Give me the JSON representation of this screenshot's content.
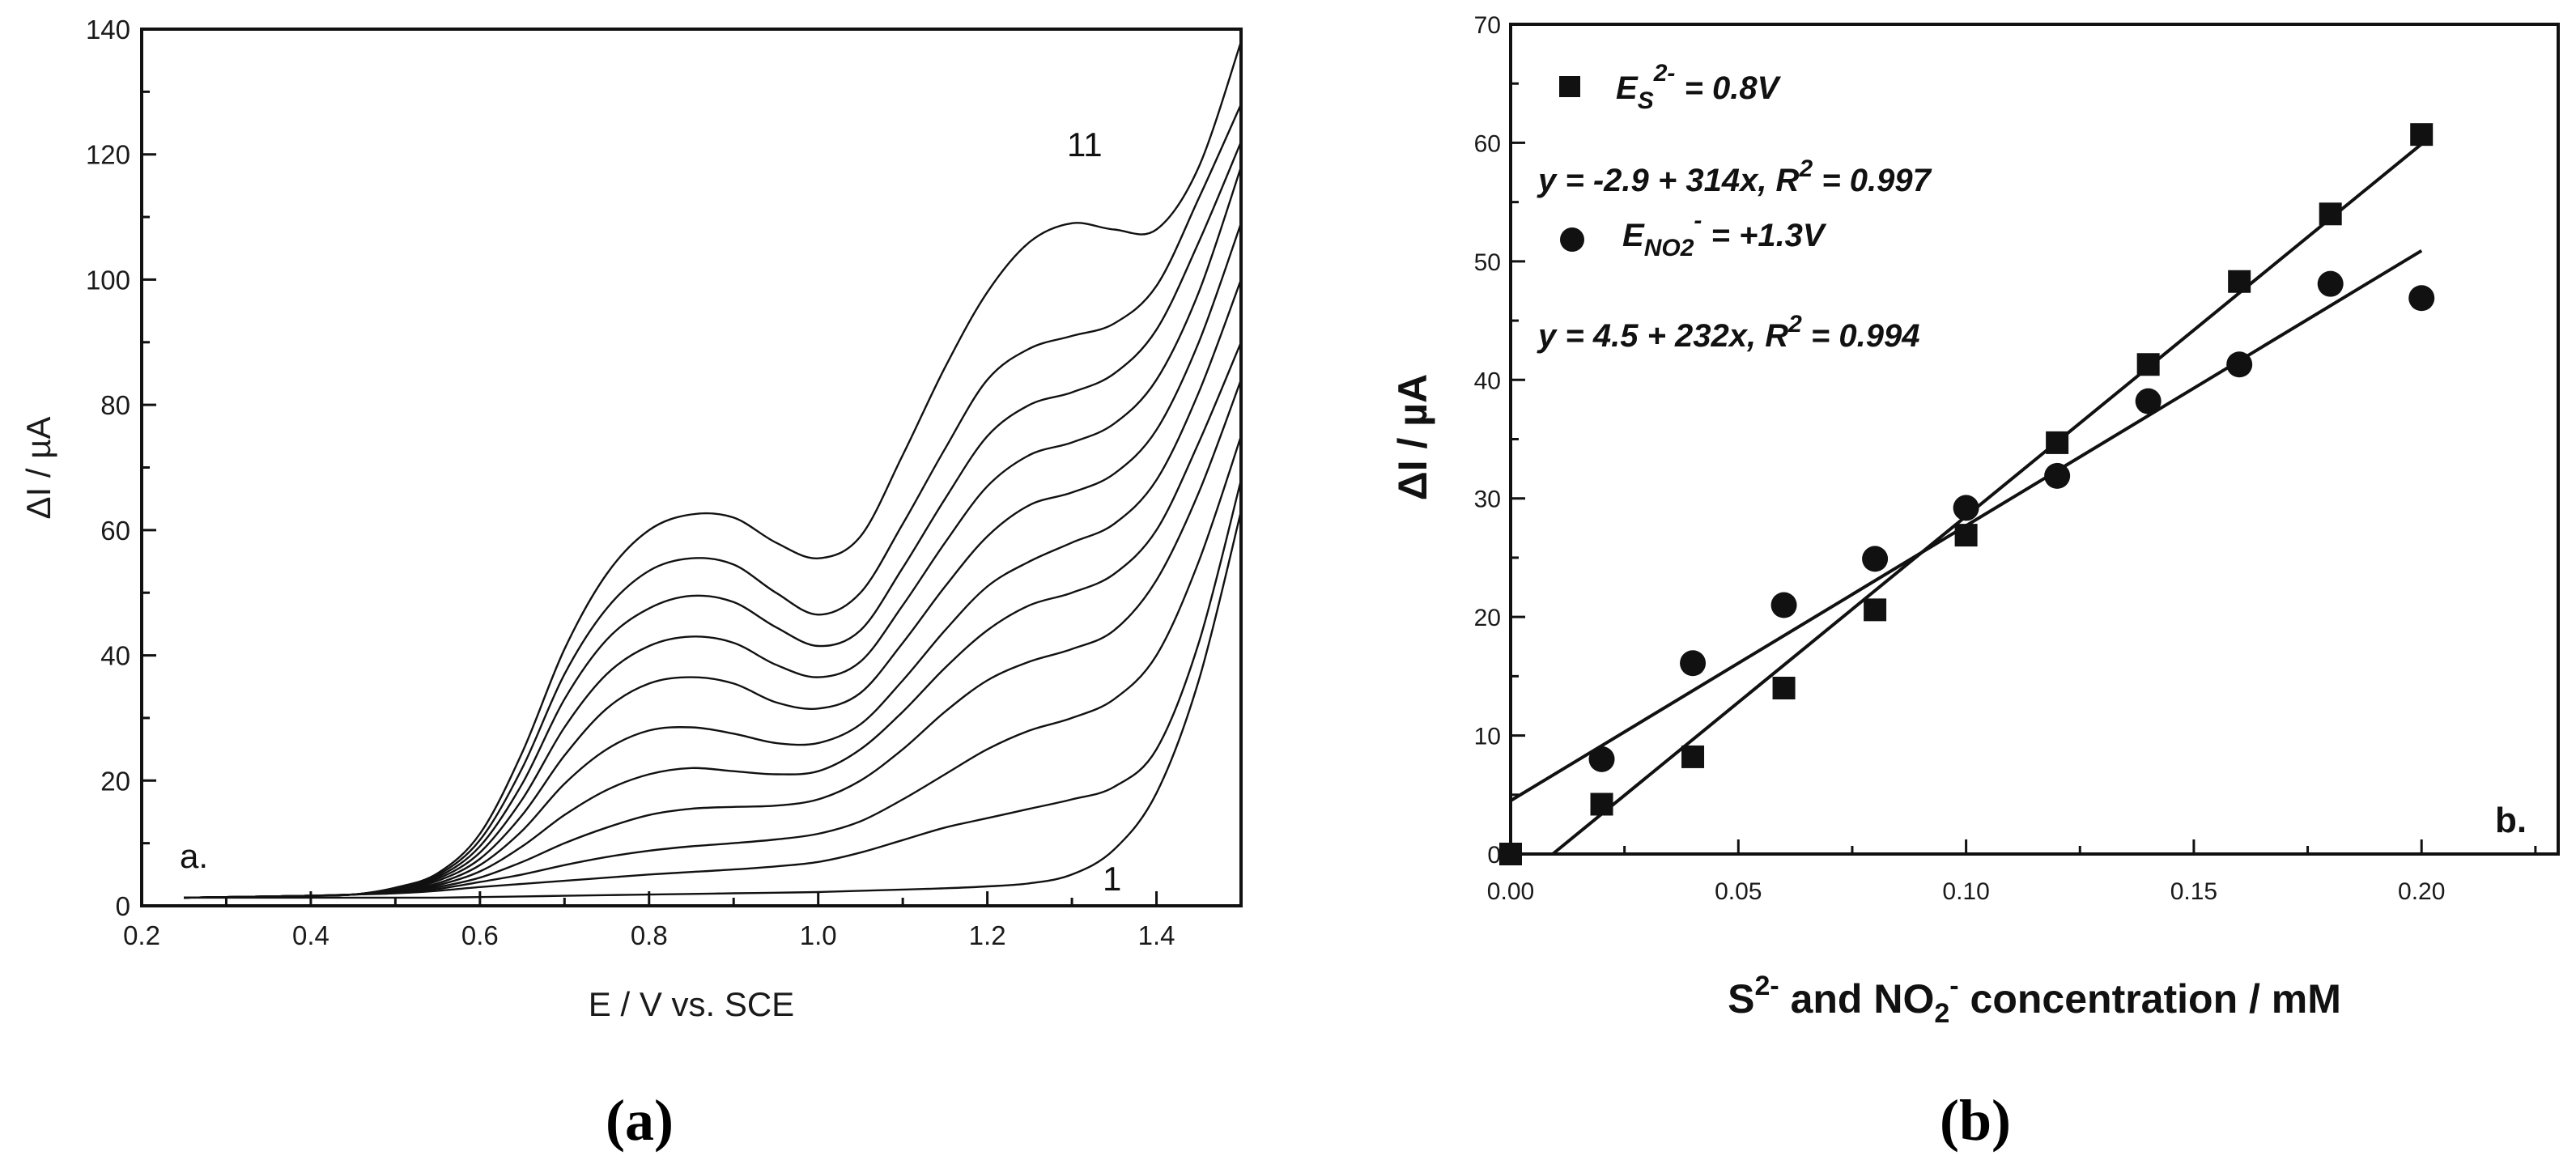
{
  "chart_data": [
    {
      "type": "line",
      "panel_label": "(a)",
      "corner_label": "a.",
      "xlabel": "E / V vs. SCE",
      "ylabel": "ΔI / µA",
      "xlim": [
        0.2,
        1.5
      ],
      "ylim": [
        0,
        140
      ],
      "x_ticks": [
        "0.2",
        "0.4",
        "0.6",
        "0.8",
        "1.0",
        "1.2",
        "1.4"
      ],
      "y_ticks": [
        "0",
        "20",
        "40",
        "60",
        "80",
        "100",
        "120",
        "140"
      ],
      "curve_labels": {
        "first": "1",
        "last": "11"
      },
      "x": [
        0.25,
        0.3,
        0.35,
        0.4,
        0.45,
        0.5,
        0.55,
        0.6,
        0.65,
        0.7,
        0.75,
        0.8,
        0.85,
        0.9,
        0.95,
        1.0,
        1.05,
        1.1,
        1.15,
        1.2,
        1.25,
        1.3,
        1.35,
        1.4,
        1.45,
        1.5
      ],
      "series": [
        {
          "name": "1",
          "values": [
            1.3,
            1.3,
            1.3,
            1.3,
            1.3,
            1.3,
            1.3,
            1.4,
            1.5,
            1.6,
            1.7,
            1.8,
            1.9,
            2.0,
            2.1,
            2.2,
            2.4,
            2.6,
            2.8,
            3.1,
            3.6,
            5,
            9,
            18,
            36,
            63
          ]
        },
        {
          "name": "2",
          "values": [
            1.3,
            1.4,
            1.5,
            1.6,
            1.8,
            2.0,
            2.4,
            3.0,
            3.5,
            4.0,
            4.5,
            5.0,
            5.4,
            5.8,
            6.3,
            7.0,
            8.5,
            10.5,
            12.5,
            14.0,
            15.5,
            17,
            19,
            25,
            42,
            68
          ]
        },
        {
          "name": "3",
          "values": [
            1.3,
            1.4,
            1.5,
            1.6,
            1.8,
            2.1,
            2.7,
            3.8,
            5.0,
            6.5,
            7.8,
            8.8,
            9.5,
            10.0,
            10.6,
            11.5,
            13.5,
            17,
            21,
            25,
            28,
            30,
            33,
            40,
            55,
            75
          ]
        },
        {
          "name": "4",
          "values": [
            1.3,
            1.4,
            1.5,
            1.6,
            1.8,
            2.2,
            3.0,
            4.5,
            7.0,
            10.0,
            12.5,
            14.5,
            15.5,
            15.8,
            16.0,
            17.0,
            20,
            25,
            31,
            36,
            39,
            41,
            44,
            52,
            66,
            84
          ]
        },
        {
          "name": "5",
          "values": [
            1.3,
            1.4,
            1.5,
            1.6,
            1.8,
            2.3,
            3.3,
            5.5,
            9.5,
            14.5,
            18.5,
            21.0,
            22.0,
            21.5,
            21.0,
            21.5,
            25,
            31,
            38,
            44,
            48,
            50,
            53,
            60,
            74,
            90
          ]
        },
        {
          "name": "6",
          "values": [
            1.3,
            1.4,
            1.5,
            1.6,
            1.8,
            2.4,
            3.6,
            6.5,
            12.0,
            19.5,
            25.0,
            28.0,
            28.5,
            27.5,
            26.0,
            26.0,
            29,
            36,
            44,
            51,
            55,
            58,
            61,
            68,
            82,
            100
          ]
        },
        {
          "name": "7",
          "values": [
            1.3,
            1.4,
            1.5,
            1.6,
            1.8,
            2.5,
            4.0,
            7.5,
            14.5,
            24.0,
            31.5,
            35.5,
            36.5,
            35.5,
            32.5,
            31.5,
            34,
            42,
            51,
            59,
            64,
            66,
            69,
            76,
            90,
            109
          ]
        },
        {
          "name": "8",
          "values": [
            1.3,
            1.4,
            1.5,
            1.6,
            1.8,
            2.6,
            4.3,
            8.5,
            17.0,
            28.5,
            37.0,
            41.5,
            43.0,
            42.0,
            38.5,
            36.5,
            39,
            48,
            58,
            67,
            72,
            74,
            77,
            84,
            98,
            118
          ]
        },
        {
          "name": "9",
          "values": [
            1.3,
            1.4,
            1.5,
            1.6,
            1.8,
            2.7,
            4.6,
            9.5,
            19.5,
            33.0,
            42.5,
            47.5,
            49.5,
            48.5,
            44.5,
            41.5,
            44,
            54,
            65,
            75,
            80,
            82,
            85,
            92,
            106,
            122
          ]
        },
        {
          "name": "10",
          "values": [
            1.3,
            1.4,
            1.5,
            1.6,
            1.8,
            2.8,
            4.9,
            10.5,
            22.0,
            37.0,
            47.5,
            53.5,
            55.5,
            54.5,
            50.0,
            46.5,
            50,
            61,
            73,
            84,
            89,
            91,
            93,
            99,
            113,
            128
          ]
        },
        {
          "name": "11",
          "values": [
            1.3,
            1.4,
            1.5,
            1.6,
            1.8,
            2.9,
            5.2,
            11.5,
            24.5,
            41.0,
            53.0,
            60.0,
            62.5,
            62.0,
            58.0,
            55.5,
            59,
            72,
            86,
            98,
            106,
            109,
            108,
            108,
            118,
            138
          ]
        }
      ]
    },
    {
      "type": "scatter",
      "panel_label": "(b)",
      "corner_label": "b.",
      "xlabel_parts": {
        "s": "S",
        "s_sup": "2-",
        "and": " and NO",
        "no_sub": "2",
        "no_sup": "-",
        "rest": " concentration / mM"
      },
      "ylabel": "ΔI / µA",
      "xlim": [
        0.0,
        0.23
      ],
      "ylim": [
        0,
        70
      ],
      "x_ticks": [
        "0.00",
        "0.05",
        "0.10",
        "0.15",
        "0.20"
      ],
      "y_ticks": [
        "0",
        "10",
        "20",
        "30",
        "40",
        "50",
        "60",
        "70"
      ],
      "series": [
        {
          "name": "E_S2-",
          "marker": "square",
          "legend": {
            "base": "E",
            "sub": "S",
            "sup": "2-",
            "rest": " = 0.8V"
          },
          "equation": {
            "text": "y = -2.9 + 314x, R",
            "sup": "2",
            "rest": " = 0.997"
          },
          "fit": {
            "intercept": -2.9,
            "slope": 314
          },
          "x": [
            0.0,
            0.02,
            0.04,
            0.06,
            0.08,
            0.1,
            0.12,
            0.14,
            0.16,
            0.18,
            0.2
          ],
          "values": [
            0,
            4.2,
            8.2,
            14.0,
            20.6,
            26.9,
            34.7,
            41.3,
            48.3,
            54.0,
            60.7
          ]
        },
        {
          "name": "E_NO2-",
          "marker": "circle",
          "legend": {
            "base": "E",
            "sub": "NO2",
            "sup": "-",
            "rest": " = +1.3V"
          },
          "equation": {
            "text": "y = 4.5 + 232x, R",
            "sup": "2",
            "rest": " = 0.994"
          },
          "fit": {
            "intercept": 4.5,
            "slope": 232
          },
          "x": [
            0.02,
            0.04,
            0.06,
            0.08,
            0.1,
            0.12,
            0.14,
            0.16,
            0.18,
            0.2
          ],
          "values": [
            8.0,
            16.1,
            21.0,
            24.9,
            29.2,
            31.9,
            38.2,
            41.3,
            48.1,
            46.9
          ]
        }
      ]
    }
  ]
}
